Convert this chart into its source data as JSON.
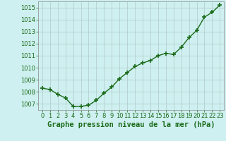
{
  "x": [
    0,
    1,
    2,
    3,
    4,
    5,
    6,
    7,
    8,
    9,
    10,
    11,
    12,
    13,
    14,
    15,
    16,
    17,
    18,
    19,
    20,
    21,
    22,
    23
  ],
  "y": [
    1008.3,
    1008.2,
    1007.8,
    1007.5,
    1006.8,
    1006.8,
    1006.9,
    1007.3,
    1007.9,
    1008.4,
    1009.1,
    1009.6,
    1010.1,
    1010.4,
    1010.6,
    1011.0,
    1011.2,
    1011.1,
    1011.7,
    1012.5,
    1013.1,
    1014.2,
    1014.6,
    1015.2
  ],
  "ylim": [
    1006.5,
    1015.5
  ],
  "yticks": [
    1007,
    1008,
    1009,
    1010,
    1011,
    1012,
    1013,
    1014,
    1015
  ],
  "xlim": [
    -0.5,
    23.5
  ],
  "xticks": [
    0,
    1,
    2,
    3,
    4,
    5,
    6,
    7,
    8,
    9,
    10,
    11,
    12,
    13,
    14,
    15,
    16,
    17,
    18,
    19,
    20,
    21,
    22,
    23
  ],
  "line_color": "#1a6b1a",
  "marker": "+",
  "marker_size": 4,
  "marker_lw": 1.2,
  "line_width": 1.0,
  "background_color": "#cff0f0",
  "grid_color": "#b0c8c8",
  "xlabel": "Graphe pression niveau de la mer (hPa)",
  "xlabel_color": "#1a6b1a",
  "xlabel_fontsize": 7.5,
  "tick_fontsize": 6.0,
  "tick_color": "#1a6b1a",
  "spine_color": "#888888"
}
